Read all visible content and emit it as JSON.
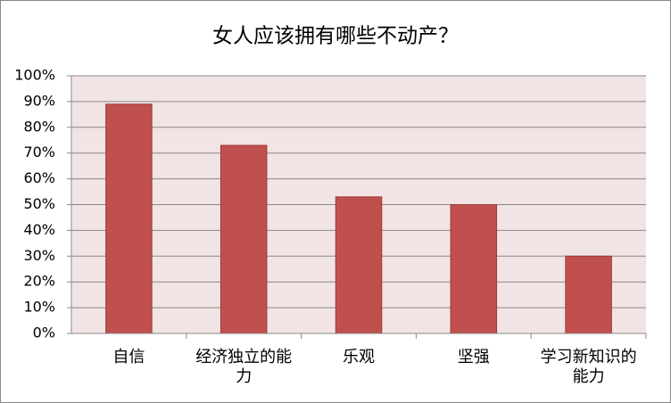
{
  "chart_data": {
    "type": "bar",
    "title": "女人应该拥有哪些不动产？",
    "categories": [
      "自信",
      "经济独立的能力",
      "乐观",
      "坚强",
      "学习新知识的能力"
    ],
    "values": [
      89,
      73,
      53,
      50,
      30
    ],
    "color": "#c0504d",
    "ylim": [
      0,
      100
    ],
    "yticks": [
      {
        "value": 0,
        "label": "0%"
      },
      {
        "value": 10,
        "label": "10%"
      },
      {
        "value": 20,
        "label": "20%"
      },
      {
        "value": 30,
        "label": "30%"
      },
      {
        "value": 40,
        "label": "40%"
      },
      {
        "value": 50,
        "label": "50%"
      },
      {
        "value": 60,
        "label": "60%"
      },
      {
        "value": 70,
        "label": "70%"
      },
      {
        "value": 80,
        "label": "80%"
      },
      {
        "value": 90,
        "label": "90%"
      },
      {
        "value": 100,
        "label": "100%"
      }
    ],
    "grid": true
  }
}
